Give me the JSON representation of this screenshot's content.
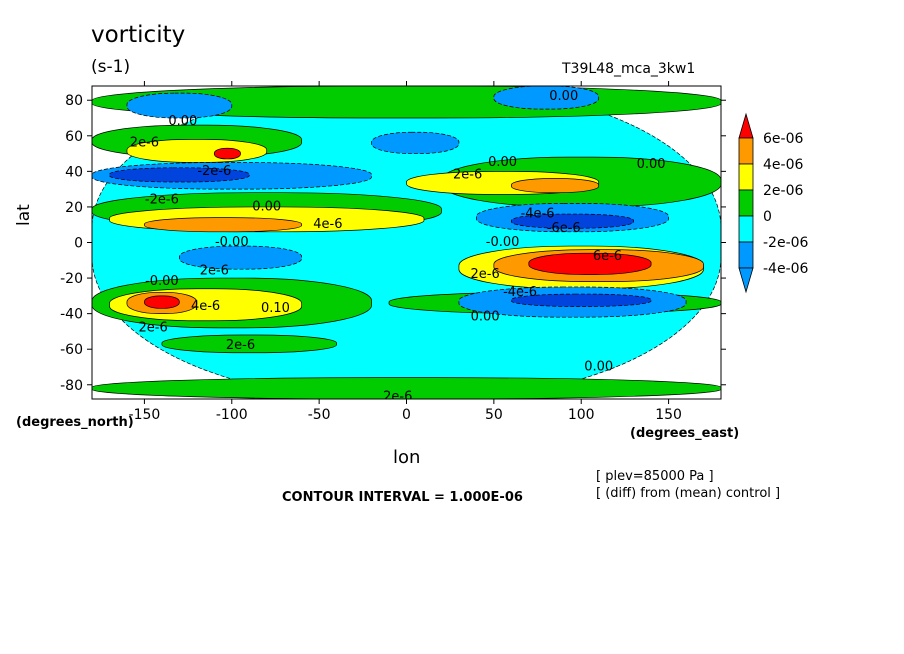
{
  "header": {
    "title": "vorticity",
    "units": "(s-1)",
    "run_name": "T39L48_mca_3kw1"
  },
  "footer": {
    "lat_units": "(degrees_north)",
    "lon_units": "(degrees_east)",
    "plev": "[ plev=85000 Pa ]",
    "diff": "[ (diff) from (mean) control ]",
    "interval": "CONTOUR INTERVAL = 1.000E-06"
  },
  "colors": {
    "red": "#ff0000",
    "orange": "#ff9900",
    "yellow": "#ffff00",
    "green": "#00cc00",
    "cyan": "#00ffff",
    "blue": "#0099ff",
    "darkblue": "#0044dd"
  },
  "chart_data": {
    "type": "heatmap",
    "title": "vorticity",
    "xlabel": "lon",
    "ylabel": "lat",
    "xlim": [
      -180,
      180
    ],
    "ylim": [
      -88,
      88
    ],
    "xticks": [
      -150,
      -100,
      -50,
      0,
      50,
      100,
      150
    ],
    "xtick_labels": [
      "-150",
      "-100",
      "-50",
      "0",
      "50",
      "100",
      "150"
    ],
    "yticks": [
      80,
      60,
      40,
      20,
      0,
      -20,
      -40,
      -60,
      -80
    ],
    "ytick_labels": [
      "80",
      "60",
      "40",
      "20",
      "0",
      "-20",
      "-40",
      "-60",
      "-80"
    ],
    "colorbar": {
      "levels": [
        -4e-06,
        -2e-06,
        0,
        2e-06,
        4e-06,
        6e-06
      ],
      "labels": [
        "6e-06",
        "4e-06",
        "2e-06",
        "0",
        "-2e-06",
        "-4e-06"
      ]
    },
    "contour_labels": [
      {
        "text": "0.00",
        "lon": -128,
        "lat": 68
      },
      {
        "text": "2e-6",
        "lon": -150,
        "lat": 56
      },
      {
        "text": "-2e-6",
        "lon": -110,
        "lat": 40
      },
      {
        "text": "-2e-6",
        "lon": -140,
        "lat": 24
      },
      {
        "text": "0.00",
        "lon": -80,
        "lat": 20
      },
      {
        "text": "4e-6",
        "lon": -45,
        "lat": 10
      },
      {
        "text": "-0.00",
        "lon": -100,
        "lat": 0
      },
      {
        "text": "2e-6",
        "lon": -110,
        "lat": -16
      },
      {
        "text": "-0.00",
        "lon": -140,
        "lat": -22
      },
      {
        "text": "4e-6",
        "lon": -115,
        "lat": -36
      },
      {
        "text": "0.10",
        "lon": -75,
        "lat": -37
      },
      {
        "text": "2e-6",
        "lon": -145,
        "lat": -48
      },
      {
        "text": "2e-6",
        "lon": -95,
        "lat": -58
      },
      {
        "text": "0.00",
        "lon": 90,
        "lat": 82
      },
      {
        "text": "0.00",
        "lon": 55,
        "lat": 45
      },
      {
        "text": "2e-6",
        "lon": 35,
        "lat": 38
      },
      {
        "text": "0.00",
        "lon": 140,
        "lat": 44
      },
      {
        "text": "-4e-6",
        "lon": 75,
        "lat": 16
      },
      {
        "text": "-6e-6",
        "lon": 90,
        "lat": 8
      },
      {
        "text": "-0.00",
        "lon": 55,
        "lat": 0
      },
      {
        "text": "2e-6",
        "lon": 45,
        "lat": -18
      },
      {
        "text": "6e-6",
        "lon": 115,
        "lat": -8
      },
      {
        "text": "-4e-6",
        "lon": 65,
        "lat": -28
      },
      {
        "text": "0.00",
        "lon": 45,
        "lat": -42
      },
      {
        "text": "0.00",
        "lon": 110,
        "lat": -70
      },
      {
        "text": "2e-6",
        "lon": -5,
        "lat": -87
      }
    ],
    "regions": [
      {
        "level": "cyan",
        "lon": [
          -180,
          180
        ],
        "lat": [
          -88,
          88
        ]
      },
      {
        "level": "green",
        "lon": [
          -180,
          180
        ],
        "lat": [
          70,
          88
        ]
      },
      {
        "level": "green",
        "lon": [
          -180,
          -60
        ],
        "lat": [
          48,
          66
        ]
      },
      {
        "level": "green",
        "lon": [
          -180,
          20
        ],
        "lat": [
          8,
          28
        ]
      },
      {
        "level": "green",
        "lon": [
          -180,
          -20
        ],
        "lat": [
          -48,
          -20
        ]
      },
      {
        "level": "green",
        "lon": [
          -10,
          180
        ],
        "lat": [
          -40,
          -28
        ]
      },
      {
        "level": "green",
        "lon": [
          -180,
          180
        ],
        "lat": [
          -88,
          -76
        ]
      },
      {
        "level": "green",
        "lon": [
          20,
          180
        ],
        "lat": [
          20,
          48
        ]
      },
      {
        "level": "green",
        "lon": [
          -140,
          -40
        ],
        "lat": [
          -62,
          -52
        ]
      },
      {
        "level": "yellow",
        "lon": [
          -160,
          -80
        ],
        "lat": [
          45,
          58
        ]
      },
      {
        "level": "yellow",
        "lon": [
          -170,
          10
        ],
        "lat": [
          6,
          20
        ]
      },
      {
        "level": "yellow",
        "lon": [
          -170,
          -60
        ],
        "lat": [
          -44,
          -26
        ]
      },
      {
        "level": "yellow",
        "lon": [
          0,
          110
        ],
        "lat": [
          27,
          40
        ]
      },
      {
        "level": "yellow",
        "lon": [
          30,
          170
        ],
        "lat": [
          -26,
          -2
        ]
      },
      {
        "level": "orange",
        "lon": [
          -150,
          -60
        ],
        "lat": [
          6,
          14
        ]
      },
      {
        "level": "orange",
        "lon": [
          -160,
          -120
        ],
        "lat": [
          -40,
          -28
        ]
      },
      {
        "level": "orange",
        "lon": [
          50,
          170
        ],
        "lat": [
          -22,
          -4
        ]
      },
      {
        "level": "orange",
        "lon": [
          60,
          110
        ],
        "lat": [
          28,
          36
        ]
      },
      {
        "level": "red",
        "lon": [
          -150,
          -130
        ],
        "lat": [
          -37,
          -30
        ]
      },
      {
        "level": "red",
        "lon": [
          70,
          140
        ],
        "lat": [
          -18,
          -6
        ]
      },
      {
        "level": "red",
        "lon": [
          -110,
          -95
        ],
        "lat": [
          47,
          53
        ]
      },
      {
        "level": "blue",
        "lon": [
          -180,
          -20
        ],
        "lat": [
          30,
          45
        ]
      },
      {
        "level": "blue",
        "lon": [
          -130,
          -60
        ],
        "lat": [
          -15,
          -2
        ]
      },
      {
        "level": "blue",
        "lon": [
          40,
          150
        ],
        "lat": [
          6,
          22
        ]
      },
      {
        "level": "blue",
        "lon": [
          30,
          160
        ],
        "lat": [
          -42,
          -25
        ]
      },
      {
        "level": "blue",
        "lon": [
          -160,
          -100
        ],
        "lat": [
          70,
          84
        ]
      },
      {
        "level": "blue",
        "lon": [
          -20,
          30
        ],
        "lat": [
          50,
          62
        ]
      },
      {
        "level": "blue",
        "lon": [
          50,
          110
        ],
        "lat": [
          75,
          88
        ]
      },
      {
        "level": "darkblue",
        "lon": [
          -170,
          -90
        ],
        "lat": [
          34,
          42
        ]
      },
      {
        "level": "darkblue",
        "lon": [
          60,
          130
        ],
        "lat": [
          8,
          16
        ]
      },
      {
        "level": "darkblue",
        "lon": [
          60,
          140
        ],
        "lat": [
          -36,
          -29
        ]
      }
    ]
  }
}
